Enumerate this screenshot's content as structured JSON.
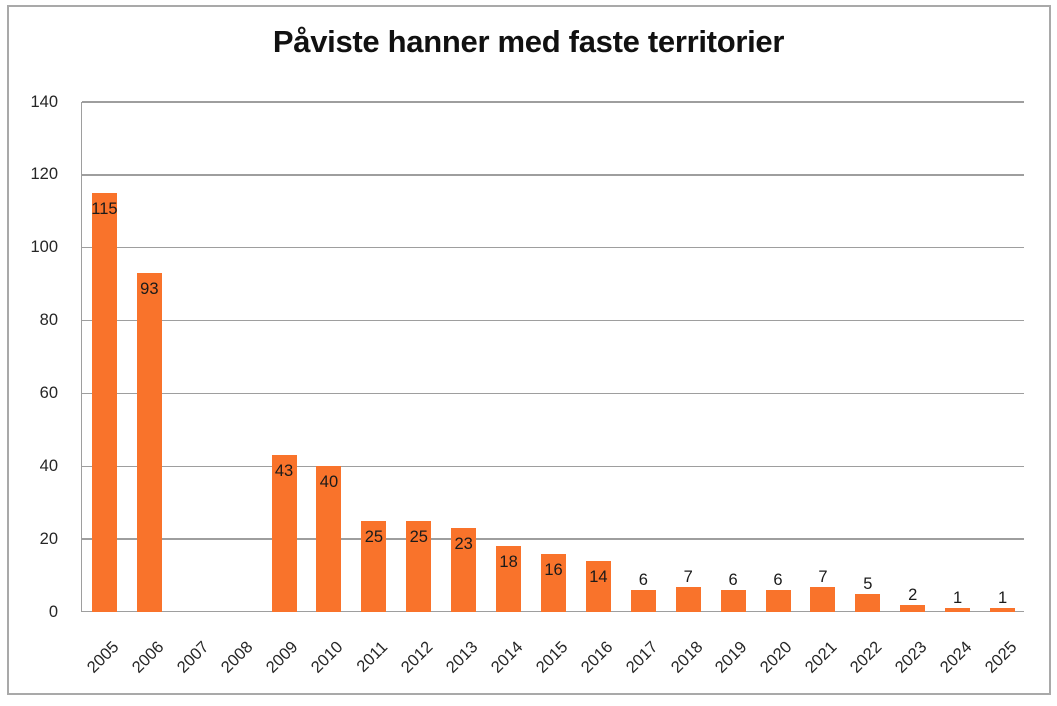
{
  "chart_data": {
    "type": "bar",
    "title": "Påviste hanner med faste territorier",
    "xlabel": "",
    "ylabel": "",
    "categories": [
      "2005",
      "2006",
      "2007",
      "2008",
      "2009",
      "2010",
      "2011",
      "2012",
      "2013",
      "2014",
      "2015",
      "2016",
      "2017",
      "2018",
      "2019",
      "2020",
      "2021",
      "2022",
      "2023",
      "2024",
      "2025"
    ],
    "values": [
      115,
      93,
      0,
      0,
      43,
      40,
      25,
      25,
      23,
      18,
      16,
      14,
      6,
      7,
      6,
      6,
      7,
      5,
      2,
      1,
      1
    ],
    "data_labels": [
      115,
      93,
      null,
      null,
      43,
      40,
      25,
      25,
      23,
      18,
      16,
      14,
      6,
      7,
      6,
      6,
      7,
      5,
      2,
      1,
      1
    ],
    "ylim": [
      0,
      140
    ],
    "yticks": [
      0,
      20,
      40,
      60,
      80,
      100,
      120,
      140
    ],
    "grid": true,
    "legend": "none",
    "x_tick_rotation_deg": 45,
    "bar_color": "#f9732b"
  },
  "colors": {
    "bar": "#f9732b",
    "gridline": "#9e9e9e",
    "frame_border": "#a9a9a9",
    "axis_text": "#262626",
    "label_text": "#1a1a1a",
    "background": "#ffffff"
  }
}
